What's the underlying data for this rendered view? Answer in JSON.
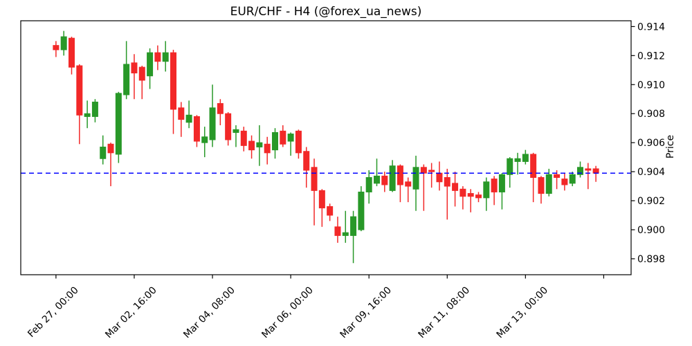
{
  "chart_data": {
    "type": "candlestick",
    "title": "EUR/CHF - H4 (@forex_ua_news)",
    "ylabel": "Price",
    "ylabel_side": "right",
    "timeframe": "H4",
    "symbol": "EUR/CHF",
    "grid": false,
    "legend": "none",
    "ylim": [
      0.8969,
      0.9144
    ],
    "xlim": [
      -4.5,
      73.5
    ],
    "y_ticks": [
      0.898,
      0.9,
      0.902,
      0.904,
      0.906,
      0.908,
      0.91,
      0.912,
      0.914
    ],
    "x_tick_indices": [
      0,
      10,
      20,
      30,
      40,
      50,
      60,
      70
    ],
    "x_tick_labels": [
      "Feb 27, 00:00",
      "Mar 02, 16:00",
      "Mar 04, 08:00",
      "Mar 06, 00:00",
      "Mar 09, 16:00",
      "Mar 11, 08:00",
      "Mar 13, 00:00",
      ""
    ],
    "hline": {
      "value": 0.9039,
      "color": "#0000ff",
      "style": "dashed"
    },
    "colors": {
      "up": "#289828",
      "down": "#f22828",
      "axis": "#000000",
      "background": "#ffffff"
    },
    "series_format": [
      "open",
      "high",
      "low",
      "close"
    ],
    "candles": [
      [
        0.9127,
        0.913,
        0.9119,
        0.9124
      ],
      [
        0.9124,
        0.9137,
        0.912,
        0.9133
      ],
      [
        0.9132,
        0.9133,
        0.9107,
        0.9112
      ],
      [
        0.9113,
        0.9114,
        0.9059,
        0.9079
      ],
      [
        0.9078,
        0.9089,
        0.907,
        0.908
      ],
      [
        0.9078,
        0.909,
        0.9074,
        0.9088
      ],
      [
        0.9049,
        0.9065,
        0.9045,
        0.9057
      ],
      [
        0.9059,
        0.906,
        0.903,
        0.9053
      ],
      [
        0.9052,
        0.9095,
        0.9046,
        0.9094
      ],
      [
        0.9093,
        0.913,
        0.909,
        0.9114
      ],
      [
        0.9115,
        0.9121,
        0.909,
        0.9108
      ],
      [
        0.9112,
        0.9113,
        0.909,
        0.9103
      ],
      [
        0.9106,
        0.9125,
        0.9097,
        0.9122
      ],
      [
        0.9122,
        0.9127,
        0.911,
        0.9116
      ],
      [
        0.9116,
        0.913,
        0.9109,
        0.9122
      ],
      [
        0.9122,
        0.9124,
        0.9066,
        0.9083
      ],
      [
        0.9084,
        0.9088,
        0.9064,
        0.9076
      ],
      [
        0.9074,
        0.9089,
        0.907,
        0.9079
      ],
      [
        0.9078,
        0.9079,
        0.9057,
        0.9061
      ],
      [
        0.906,
        0.9071,
        0.905,
        0.9064
      ],
      [
        0.9062,
        0.91,
        0.9057,
        0.9084
      ],
      [
        0.9087,
        0.909,
        0.9072,
        0.908
      ],
      [
        0.908,
        0.9081,
        0.9058,
        0.9062
      ],
      [
        0.9067,
        0.9072,
        0.9057,
        0.9069
      ],
      [
        0.9068,
        0.9071,
        0.9054,
        0.9058
      ],
      [
        0.9061,
        0.9065,
        0.9049,
        0.9055
      ],
      [
        0.9057,
        0.9072,
        0.9044,
        0.906
      ],
      [
        0.9059,
        0.9064,
        0.9045,
        0.9053
      ],
      [
        0.9055,
        0.907,
        0.9049,
        0.9067
      ],
      [
        0.9068,
        0.9072,
        0.9057,
        0.9059
      ],
      [
        0.9061,
        0.9067,
        0.9051,
        0.9066
      ],
      [
        0.9068,
        0.9069,
        0.9049,
        0.9053
      ],
      [
        0.9054,
        0.9057,
        0.9029,
        0.9041
      ],
      [
        0.9043,
        0.9049,
        0.9003,
        0.9027
      ],
      [
        0.9027,
        0.9028,
        0.9002,
        0.9015
      ],
      [
        0.9016,
        0.9018,
        0.9006,
        0.901
      ],
      [
        0.9002,
        0.9009,
        0.8991,
        0.8996
      ],
      [
        0.8996,
        0.9013,
        0.8991,
        0.8998
      ],
      [
        0.8996,
        0.9013,
        0.8977,
        0.9009
      ],
      [
        0.9,
        0.903,
        0.8999,
        0.9026
      ],
      [
        0.9026,
        0.9041,
        0.9018,
        0.9036
      ],
      [
        0.9032,
        0.9049,
        0.903,
        0.9037
      ],
      [
        0.9037,
        0.904,
        0.9026,
        0.9031
      ],
      [
        0.9027,
        0.9048,
        0.9026,
        0.9044
      ],
      [
        0.9044,
        0.9045,
        0.9019,
        0.9031
      ],
      [
        0.9033,
        0.9036,
        0.9019,
        0.903
      ],
      [
        0.9028,
        0.9051,
        0.9013,
        0.9043
      ],
      [
        0.9043,
        0.9045,
        0.9013,
        0.9039
      ],
      [
        0.9041,
        0.9046,
        0.9029,
        0.904
      ],
      [
        0.9039,
        0.9047,
        0.9027,
        0.9033
      ],
      [
        0.9036,
        0.9042,
        0.9007,
        0.903
      ],
      [
        0.9032,
        0.904,
        0.9016,
        0.9027
      ],
      [
        0.9028,
        0.903,
        0.9014,
        0.9023
      ],
      [
        0.9025,
        0.9028,
        0.9012,
        0.9023
      ],
      [
        0.9024,
        0.9026,
        0.9019,
        0.9022
      ],
      [
        0.9022,
        0.9036,
        0.9013,
        0.9033
      ],
      [
        0.9035,
        0.9037,
        0.9017,
        0.9026
      ],
      [
        0.9026,
        0.9039,
        0.9014,
        0.9038
      ],
      [
        0.9038,
        0.905,
        0.9029,
        0.9049
      ],
      [
        0.9047,
        0.9053,
        0.9038,
        0.9049
      ],
      [
        0.9047,
        0.9055,
        0.9045,
        0.9052
      ],
      [
        0.9052,
        0.9053,
        0.9019,
        0.9036
      ],
      [
        0.9036,
        0.9037,
        0.9018,
        0.9025
      ],
      [
        0.9025,
        0.9042,
        0.9023,
        0.9038
      ],
      [
        0.9038,
        0.9041,
        0.9028,
        0.9036
      ],
      [
        0.9035,
        0.9039,
        0.9027,
        0.9031
      ],
      [
        0.9032,
        0.904,
        0.903,
        0.9038
      ],
      [
        0.9038,
        0.9047,
        0.9036,
        0.9043
      ],
      [
        0.9042,
        0.9046,
        0.9028,
        0.9041
      ],
      [
        0.9042,
        0.9044,
        0.9033,
        0.9039
      ]
    ]
  }
}
